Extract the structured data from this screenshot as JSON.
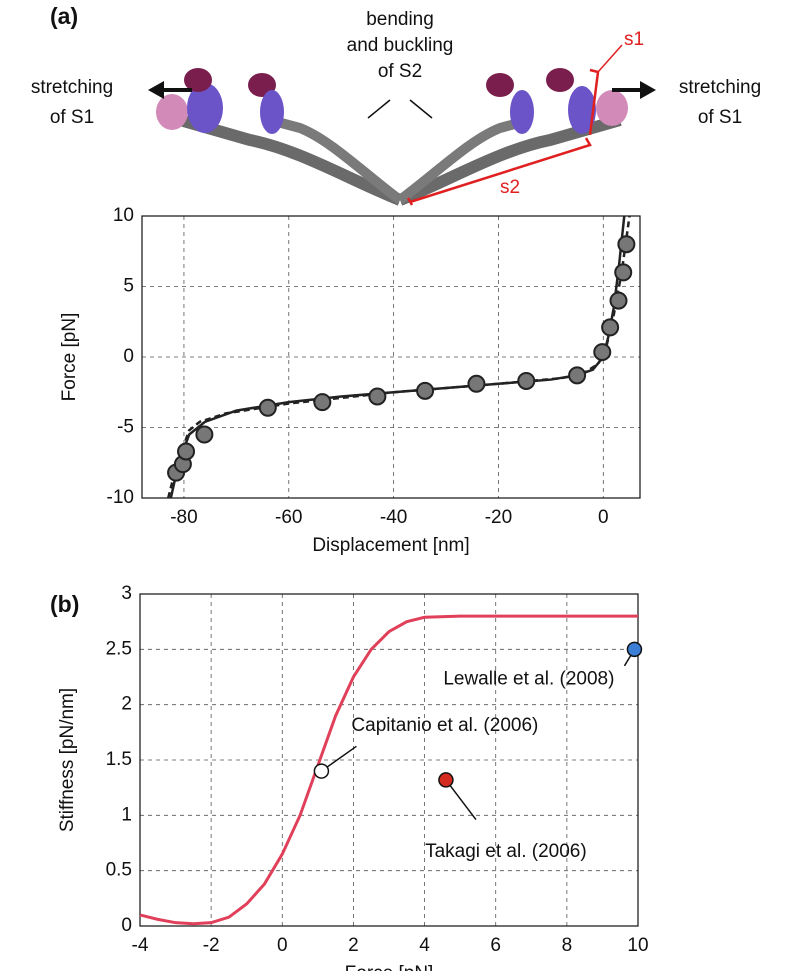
{
  "diagram": {
    "panel_label": "(a)",
    "center_label": [
      "bending",
      "and buckling",
      "of S2"
    ],
    "left_label": [
      "stretching",
      "of S1"
    ],
    "right_label": [
      "stretching",
      "of S1"
    ],
    "s1_label": "s1",
    "s2_label": "s2"
  },
  "chart_data": [
    {
      "type": "line",
      "xlabel": "Displacement [nm]",
      "ylabel": "Force [pN]",
      "xlim": [
        -88,
        7
      ],
      "ylim": [
        -10,
        10
      ],
      "xticks": [
        -80,
        -60,
        -40,
        -20,
        0
      ],
      "yticks": [
        -10,
        -5,
        0,
        5,
        10
      ],
      "grid": true,
      "series": [
        {
          "color": "#222222",
          "line": "solid",
          "marker": "none",
          "x": [
            -82.5,
            -81,
            -79,
            -76,
            -70,
            -60,
            -50,
            -40,
            -30,
            -20,
            -10,
            -5,
            -2,
            0,
            1,
            2,
            3,
            4
          ],
          "y": [
            -10,
            -7.5,
            -5.5,
            -4.6,
            -3.8,
            -3.2,
            -2.8,
            -2.5,
            -2.2,
            -1.9,
            -1.6,
            -1.3,
            -0.9,
            0,
            1.5,
            3.5,
            6.5,
            10
          ]
        },
        {
          "color": "#222222",
          "line": "dashed",
          "marker": "none",
          "x": [
            -83,
            -81.5,
            -79,
            -77,
            -72,
            -60,
            -40,
            -20,
            -8,
            -4,
            -1,
            0.5,
            2,
            3.5,
            5
          ],
          "y": [
            -10,
            -7.8,
            -5.2,
            -4.6,
            -4,
            -3.3,
            -2.5,
            -1.9,
            -1.5,
            -1.2,
            -0.5,
            0.6,
            3,
            6,
            10
          ]
        },
        {
          "color": "#777777",
          "line": "none",
          "marker": "circle",
          "x": [
            -81.5,
            -80.2,
            -79.6,
            -76.1,
            -64,
            -53.6,
            -43.1,
            -34,
            -24.2,
            -14.7,
            -5,
            -0.2,
            1.3,
            2.9,
            3.8,
            4.4
          ],
          "y": [
            -8.2,
            -7.6,
            -6.7,
            -5.5,
            -3.6,
            -3.2,
            -2.8,
            -2.4,
            -1.9,
            -1.7,
            -1.3,
            0.35,
            2.1,
            4,
            6,
            8
          ]
        }
      ]
    },
    {
      "type": "line",
      "panel_label": "(b)",
      "xlabel": "Force [pN]",
      "ylabel": "Stiffness [pN/nm]",
      "xlim": [
        -4,
        10
      ],
      "ylim": [
        0,
        3
      ],
      "xticks": [
        -4,
        -2,
        0,
        2,
        4,
        6,
        8,
        10
      ],
      "yticks": [
        0,
        0.5,
        1,
        1.5,
        2,
        2.5,
        3
      ],
      "grid": true,
      "series": [
        {
          "color": "#e0405a",
          "line": "solid",
          "marker": "none",
          "x": [
            -4,
            -3.5,
            -3,
            -2.5,
            -2,
            -1.5,
            -1,
            -0.5,
            0,
            0.5,
            1,
            1.5,
            2,
            2.5,
            3,
            3.5,
            4,
            5,
            6,
            8,
            10
          ],
          "y": [
            0.1,
            0.06,
            0.03,
            0.02,
            0.03,
            0.08,
            0.2,
            0.38,
            0.65,
            1.0,
            1.45,
            1.9,
            2.25,
            2.5,
            2.66,
            2.75,
            2.79,
            2.8,
            2.8,
            2.8,
            2.8
          ]
        }
      ],
      "points": [
        {
          "name": "Capitanio et al. (2006)",
          "x": 1.1,
          "y": 1.4,
          "color": "#ffffff"
        },
        {
          "name": "Takagi et al. (2006)",
          "x": 4.6,
          "y": 1.32,
          "color": "#d42a20"
        },
        {
          "name": "Lewalle et al. (2008)",
          "x": 9.9,
          "y": 2.5,
          "color": "#3a7fd5"
        }
      ]
    }
  ]
}
